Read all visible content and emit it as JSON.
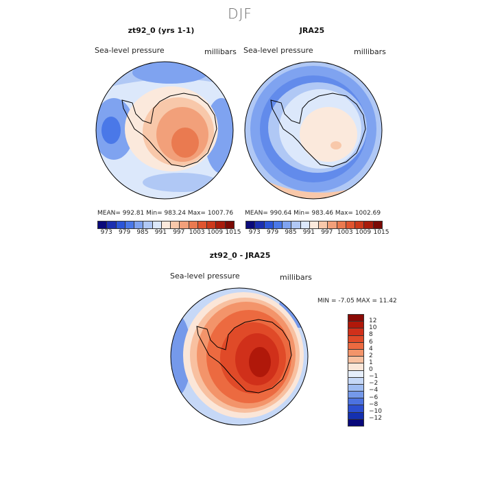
{
  "season": "DJF",
  "left_panel": {
    "title": "zt92_0 (yrs 1-1)",
    "field_label": "Sea-level pressure",
    "units": "millibars",
    "stats": "MEAN= 992.81   Min= 983.24   Max= 1007.76"
  },
  "right_panel": {
    "title": "JRA25",
    "field_label": "Sea-level pressure",
    "units": "millibars",
    "stats": "MEAN= 990.64   Min= 983.46   Max= 1002.69"
  },
  "abs_colorbar": {
    "tick_labels": [
      "973",
      "979",
      "985",
      "991",
      "997",
      "1003",
      "1009",
      "1015"
    ],
    "colors": [
      "#0a0a7a",
      "#1b2fb0",
      "#2b55d8",
      "#4a78e8",
      "#7fa3f0",
      "#b0c8f5",
      "#dce8fb",
      "#fbe9dc",
      "#f8c8aa",
      "#f2a07a",
      "#ea7a50",
      "#e05530",
      "#cc3a1c",
      "#a81c0c",
      "#7a0a05"
    ]
  },
  "diff_panel": {
    "title": "zt92_0 - JRA25",
    "field_label": "Sea-level pressure",
    "units": "millibars",
    "minmax": "MIN =   -7.05  MAX =   11.42"
  },
  "diff_colorbar": {
    "tick_labels": [
      "12",
      "10",
      "8",
      "6",
      "4",
      "2",
      "1",
      "0",
      "−1",
      "−2",
      "−4",
      "−6",
      "−8",
      "−10",
      "−12"
    ],
    "colors": [
      "#8a0a05",
      "#b0180a",
      "#d0301a",
      "#e04a28",
      "#ec6a40",
      "#f3946a",
      "#f8c0a0",
      "#fbe6d8",
      "#e6eefb",
      "#c6d8f7",
      "#9fbcf2",
      "#7599ea",
      "#4c72e0",
      "#2c4fd0",
      "#1430b0",
      "#08087a"
    ]
  },
  "map_colors": {
    "ocean_far": "#7fa3f0",
    "ocean_mid": "#b0c8f5",
    "ocean_light": "#dce8fb",
    "land_warm1": "#fbe9dc",
    "land_warm2": "#f8c8aa",
    "land_warm3": "#f2a07a",
    "land_warm4": "#ea7a50",
    "deep_blue": "#4a78e8",
    "diff_red1": "#f3946a",
    "diff_red2": "#ec6a40",
    "diff_red3": "#e04a28",
    "diff_red4": "#d0301a",
    "diff_red5": "#b0180a",
    "diff_blue": "#7599ea"
  }
}
